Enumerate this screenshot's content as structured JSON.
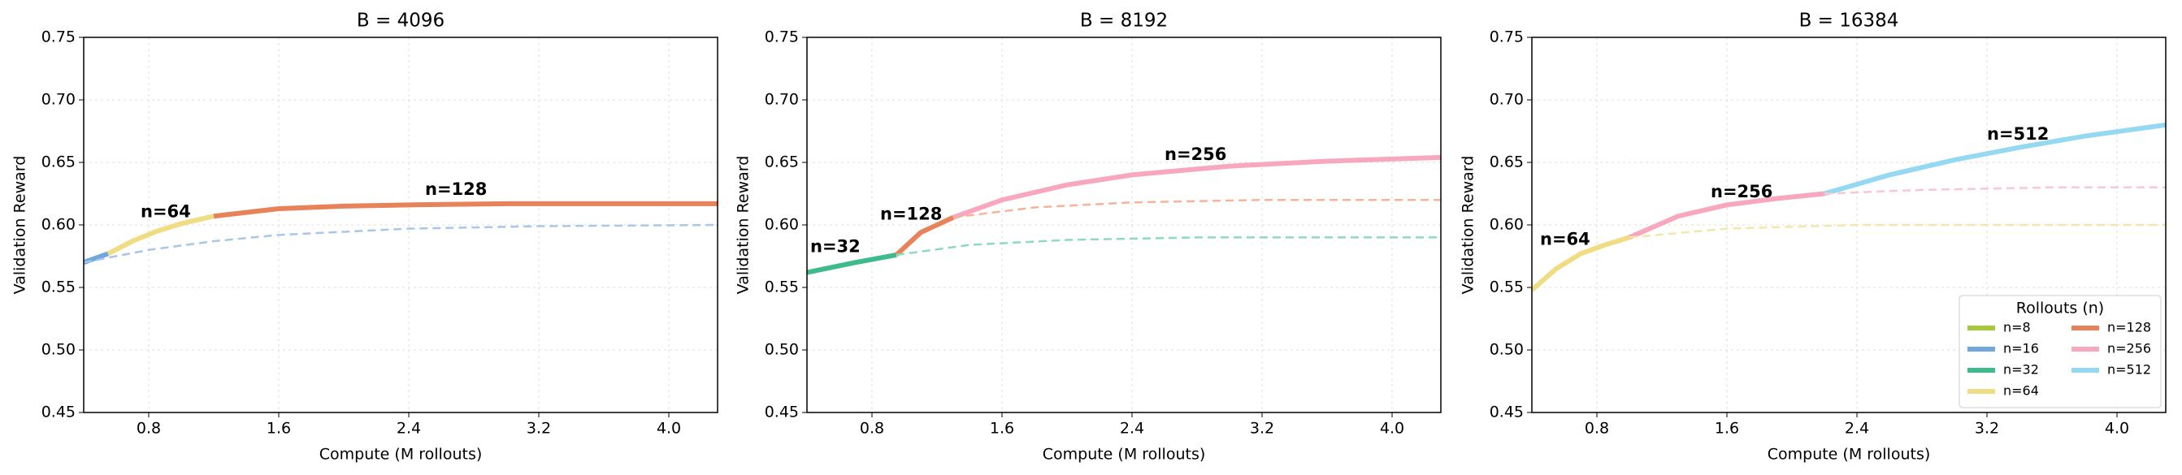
{
  "chart_data": [
    {
      "type": "line",
      "title": "B = 4096",
      "xlabel": "Compute (M rollouts)",
      "ylabel": "Validation Reward",
      "xlim": [
        0.4,
        4.3
      ],
      "ylim": [
        0.45,
        0.75
      ],
      "xticks": [
        0.8,
        1.6,
        2.4,
        3.2,
        {
          "value": 4.0,
          "label": "4.0"
        }
      ],
      "yticks": [
        0.45,
        {
          "value": 0.5,
          "label": "0.50"
        },
        0.55,
        {
          "value": 0.6,
          "label": "0.60"
        },
        0.65,
        {
          "value": 0.7,
          "label": "0.70"
        },
        0.75
      ],
      "grid": true,
      "series": [
        {
          "name": "n=16",
          "color": "#6fa8dc",
          "linestyle": "solid",
          "x": [
            0.4,
            0.55
          ],
          "values": [
            0.57,
            0.577
          ]
        },
        {
          "name": "n=64",
          "color": "#f0dc82",
          "linestyle": "solid",
          "x": [
            0.55,
            0.7,
            0.85,
            1.0,
            1.2
          ],
          "values": [
            0.577,
            0.587,
            0.595,
            0.601,
            0.607
          ]
        },
        {
          "name": "n=128",
          "color": "#e8825a",
          "linestyle": "solid",
          "x": [
            1.2,
            1.6,
            2.0,
            2.4,
            3.0,
            3.6,
            4.3
          ],
          "values": [
            0.607,
            0.613,
            0.615,
            0.616,
            0.617,
            0.617,
            0.617
          ]
        },
        {
          "color": "#a9c6e8",
          "linestyle": "dashed",
          "x": [
            0.4,
            0.8,
            1.2,
            1.6,
            2.4,
            3.2,
            4.3
          ],
          "values": [
            0.57,
            0.58,
            0.587,
            0.592,
            0.597,
            0.599,
            0.6
          ]
        }
      ],
      "annotations": [
        {
          "text": "n=64",
          "x": 0.75,
          "y": 0.61,
          "color": "#f0dc82"
        },
        {
          "text": "n=128",
          "x": 2.5,
          "y": 0.628,
          "color": "#e8825a"
        }
      ]
    },
    {
      "type": "line",
      "title": "B = 8192",
      "xlabel": "Compute (M rollouts)",
      "ylabel": "Validation Reward",
      "xlim": [
        0.4,
        4.3
      ],
      "ylim": [
        0.45,
        0.75
      ],
      "xticks": [
        0.8,
        1.6,
        2.4,
        3.2,
        {
          "value": 4.0,
          "label": "4.0"
        }
      ],
      "yticks": [
        0.45,
        {
          "value": 0.5,
          "label": "0.50"
        },
        0.55,
        {
          "value": 0.6,
          "label": "0.60"
        },
        0.65,
        {
          "value": 0.7,
          "label": "0.70"
        },
        0.75
      ],
      "grid": true,
      "series": [
        {
          "name": "n=32",
          "color": "#3dbb8c",
          "linestyle": "solid",
          "x": [
            0.4,
            0.7,
            0.95
          ],
          "values": [
            0.562,
            0.57,
            0.576
          ]
        },
        {
          "name": "n=128",
          "color": "#e8825a",
          "linestyle": "solid",
          "x": [
            0.95,
            1.1,
            1.3
          ],
          "values": [
            0.576,
            0.594,
            0.606
          ]
        },
        {
          "name": "n=256",
          "color": "#f7a8bf",
          "linestyle": "solid",
          "x": [
            1.3,
            1.6,
            2.0,
            2.4,
            3.0,
            3.6,
            4.3
          ],
          "values": [
            0.606,
            0.62,
            0.632,
            0.64,
            0.647,
            0.651,
            0.654
          ]
        },
        {
          "color": "#8fd9bd",
          "linestyle": "dashed",
          "x": [
            0.95,
            1.4,
            2.0,
            2.8,
            4.3
          ],
          "values": [
            0.576,
            0.584,
            0.588,
            0.59,
            0.59
          ]
        },
        {
          "color": "#f2b49a",
          "linestyle": "dashed",
          "x": [
            1.3,
            1.8,
            2.4,
            3.2,
            4.3
          ],
          "values": [
            0.606,
            0.614,
            0.618,
            0.62,
            0.62
          ]
        }
      ],
      "annotations": [
        {
          "text": "n=32",
          "x": 0.42,
          "y": 0.582,
          "color": "#3dbb8c"
        },
        {
          "text": "n=128",
          "x": 0.85,
          "y": 0.608,
          "color": "#e8825a"
        },
        {
          "text": "n=256",
          "x": 2.6,
          "y": 0.656,
          "color": "#f7a8bf"
        }
      ]
    },
    {
      "type": "line",
      "title": "B = 16384",
      "xlabel": "Compute (M rollouts)",
      "ylabel": "Validation Reward",
      "xlim": [
        0.4,
        4.3
      ],
      "ylim": [
        0.45,
        0.75
      ],
      "xticks": [
        0.8,
        1.6,
        2.4,
        3.2,
        {
          "value": 4.0,
          "label": "4.0"
        }
      ],
      "yticks": [
        0.45,
        {
          "value": 0.5,
          "label": "0.50"
        },
        0.55,
        {
          "value": 0.6,
          "label": "0.60"
        },
        0.65,
        {
          "value": 0.7,
          "label": "0.70"
        },
        0.75
      ],
      "grid": true,
      "series": [
        {
          "name": "n=64",
          "color": "#f0dc82",
          "linestyle": "solid",
          "x": [
            0.4,
            0.55,
            0.7,
            0.85,
            1.0
          ],
          "values": [
            0.548,
            0.565,
            0.577,
            0.584,
            0.59
          ]
        },
        {
          "name": "n=256",
          "color": "#f7a8bf",
          "linestyle": "solid",
          "x": [
            1.0,
            1.3,
            1.6,
            1.9,
            2.2
          ],
          "values": [
            0.59,
            0.607,
            0.616,
            0.621,
            0.625
          ]
        },
        {
          "name": "n=512",
          "color": "#94d8f2",
          "linestyle": "solid",
          "x": [
            2.2,
            2.6,
            3.0,
            3.4,
            3.8,
            4.3
          ],
          "values": [
            0.625,
            0.64,
            0.652,
            0.662,
            0.671,
            0.68
          ]
        },
        {
          "color": "#f3e6aa",
          "linestyle": "dashed",
          "x": [
            1.0,
            1.6,
            2.4,
            3.2,
            4.3
          ],
          "values": [
            0.59,
            0.597,
            0.6,
            0.6,
            0.6
          ]
        },
        {
          "color": "#f9c6d4",
          "linestyle": "dashed",
          "x": [
            2.2,
            2.8,
            3.6,
            4.3
          ],
          "values": [
            0.625,
            0.628,
            0.63,
            0.63
          ]
        }
      ],
      "annotations": [
        {
          "text": "n=64",
          "x": 0.45,
          "y": 0.588,
          "color": "#f0dc82"
        },
        {
          "text": "n=256",
          "x": 1.5,
          "y": 0.626,
          "color": "#f7a8bf"
        },
        {
          "text": "n=512",
          "x": 3.2,
          "y": 0.672,
          "color": "#94d8f2"
        }
      ],
      "legend": {
        "title": "Rollouts (n)",
        "position": "lower right",
        "entries": [
          {
            "name": "n=8",
            "color": "#a8c83a"
          },
          {
            "name": "n=16",
            "color": "#6fa8dc"
          },
          {
            "name": "n=32",
            "color": "#3dbb8c"
          },
          {
            "name": "n=64",
            "color": "#f0dc82"
          },
          {
            "name": "n=128",
            "color": "#e8825a"
          },
          {
            "name": "n=256",
            "color": "#f7a8bf"
          },
          {
            "name": "n=512",
            "color": "#94d8f2"
          }
        ]
      }
    }
  ]
}
